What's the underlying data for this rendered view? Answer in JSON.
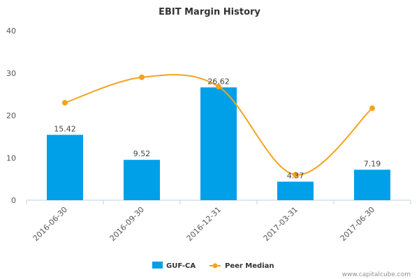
{
  "chart_data": {
    "type": "bar",
    "title": "EBIT Margin History",
    "categories": [
      "2016-06-30",
      "2016-09-30",
      "2016-12-31",
      "2017-03-31",
      "2017-06-30"
    ],
    "series": [
      {
        "name": "GUF-CA",
        "type": "bar",
        "color": "#00a0e8",
        "values": [
          15.42,
          9.52,
          26.62,
          4.37,
          7.19
        ],
        "labels": [
          "15.42",
          "9.52",
          "26.62",
          "4.37",
          "7.19"
        ]
      },
      {
        "name": "Peer Median",
        "type": "line",
        "color": "#f5a31a",
        "values": [
          23.0,
          29.0,
          26.8,
          6.0,
          21.7
        ]
      }
    ],
    "ylim": [
      0,
      40
    ],
    "yticks": [
      "0",
      "10",
      "20",
      "30",
      "40"
    ],
    "grid": false,
    "legend": "bottom-center"
  },
  "credit": "www.capitalcube.com"
}
